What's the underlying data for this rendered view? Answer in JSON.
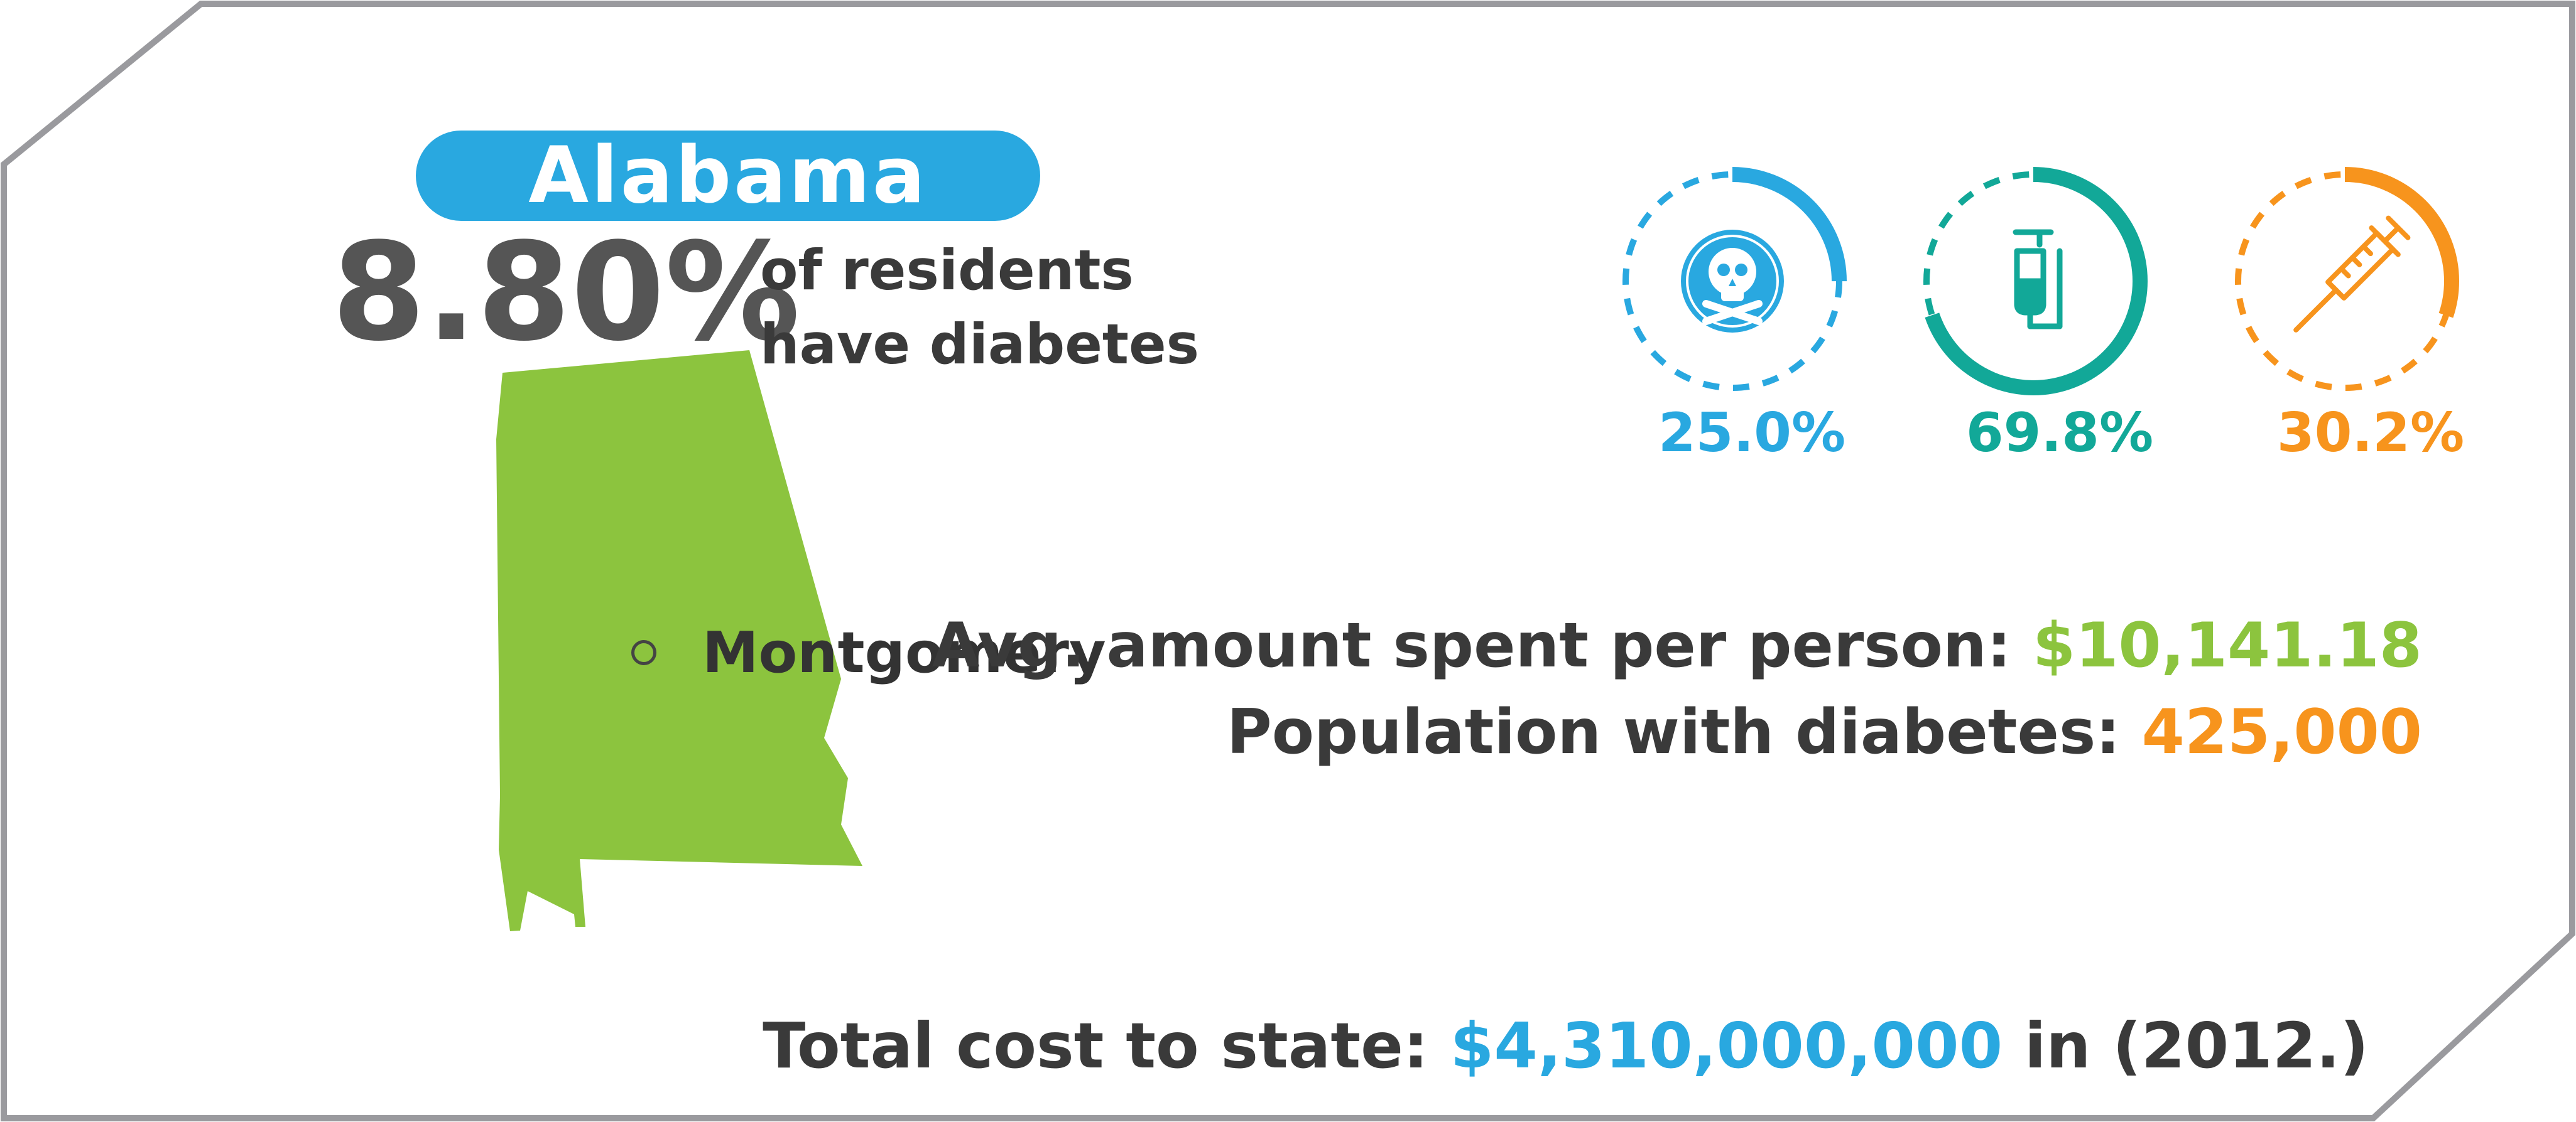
{
  "state": {
    "name": "Alabama",
    "diabetes_rate": "8.80%",
    "rate_caption_line1": "of residents",
    "rate_caption_line2": "have diabetes",
    "capital": "Montgomery"
  },
  "stats": {
    "avg_spent_label": "Avg. amount spent per person:",
    "avg_spent_value": "$10,141.18",
    "population_label": "Population with diabetes:",
    "population_value": "425,000"
  },
  "total": {
    "label": "Total cost to state:",
    "value": "$4,310,000,000",
    "suffix_in": "in",
    "year": "(2012.)"
  },
  "rings": [
    {
      "icon": "skull-crossbones-icon",
      "value_text": "25.0%",
      "fraction": 0.25,
      "color": "#29a8e0"
    },
    {
      "icon": "iv-bag-icon",
      "value_text": "69.8%",
      "fraction": 0.698,
      "color": "#12a898"
    },
    {
      "icon": "syringe-icon",
      "value_text": "30.2%",
      "fraction": 0.302,
      "color": "#f7941d"
    }
  ],
  "colors": {
    "pill": "#29a8e0",
    "map": "#8cc43e",
    "frame": "#9a9a9e",
    "text_dark": "#3a3a3a"
  }
}
